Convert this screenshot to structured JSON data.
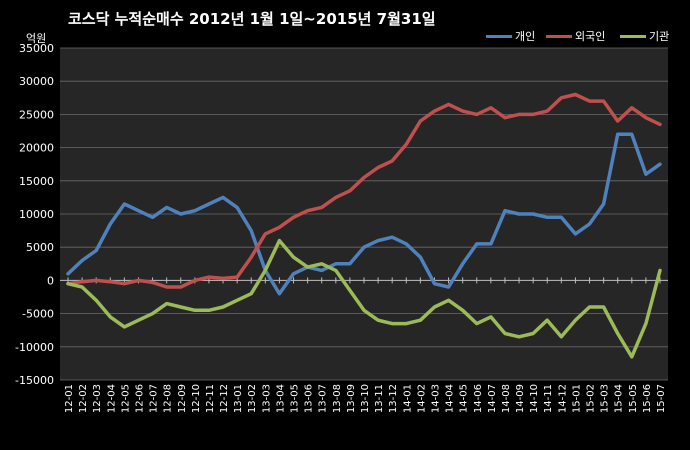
{
  "chart_data": {
    "type": "line",
    "title": "코스닥 누적순매수 2012년 1월 1일~2015년 7월31일",
    "unit_label": "억원",
    "ylim": [
      -15000,
      35000
    ],
    "yticks": [
      -15000,
      -10000,
      -5000,
      0,
      5000,
      10000,
      15000,
      20000,
      25000,
      30000,
      35000
    ],
    "grid": true,
    "legend_position": "top-right",
    "categories": [
      "12-01",
      "12-02",
      "12-03",
      "12-04",
      "12-05",
      "12-06",
      "12-07",
      "12-08",
      "12-09",
      "12-10",
      "12-11",
      "12-12",
      "13-01",
      "13-02",
      "13-03",
      "13-04",
      "13-05",
      "13-06",
      "13-07",
      "13-08",
      "13-09",
      "13-10",
      "13-11",
      "13-12",
      "14-01",
      "14-02",
      "14-03",
      "14-04",
      "14-05",
      "14-06",
      "14-07",
      "14-08",
      "14-09",
      "14-10",
      "14-11",
      "14-12",
      "15-01",
      "15-02",
      "15-03",
      "15-04",
      "15-05",
      "15-06",
      "15-07"
    ],
    "series": [
      {
        "name": "개인",
        "color": "#4F81BD",
        "values": [
          1000,
          3000,
          4500,
          8500,
          11500,
          10500,
          9500,
          11000,
          10000,
          10500,
          11500,
          12500,
          11000,
          7500,
          1500,
          -2000,
          1000,
          2000,
          1500,
          2500,
          2500,
          5000,
          6000,
          6500,
          5500,
          3500,
          -500,
          -1000,
          2500,
          5500,
          5500,
          10500,
          10000,
          10000,
          9500,
          9500,
          7000,
          8500,
          11500,
          22000,
          22000,
          16000,
          17500
        ]
      },
      {
        "name": "외국인",
        "color": "#C0504D",
        "values": [
          -500,
          -200,
          0,
          -200,
          -500,
          0,
          -300,
          -1000,
          -1000,
          0,
          500,
          300,
          500,
          3500,
          7000,
          8000,
          9500,
          10500,
          11000,
          12500,
          13500,
          15500,
          17000,
          18000,
          20500,
          24000,
          25500,
          26500,
          25500,
          25000,
          26000,
          24500,
          25000,
          25000,
          25500,
          27500,
          28000,
          27000,
          27000,
          24000,
          26000,
          24500,
          23500
        ]
      },
      {
        "name": "기관",
        "color": "#9BBB59",
        "values": [
          -500,
          -1000,
          -3000,
          -5500,
          -7000,
          -6000,
          -5000,
          -3500,
          -4000,
          -4500,
          -4500,
          -4000,
          -3000,
          -2000,
          1500,
          6000,
          3500,
          2000,
          2500,
          1500,
          -1500,
          -4500,
          -6000,
          -6500,
          -6500,
          -6000,
          -4000,
          -3000,
          -4500,
          -6500,
          -5500,
          -8000,
          -8500,
          -8000,
          -6000,
          -8500,
          -6000,
          -4000,
          -4000,
          -8000,
          -11500,
          -6500,
          1500
        ]
      }
    ]
  }
}
